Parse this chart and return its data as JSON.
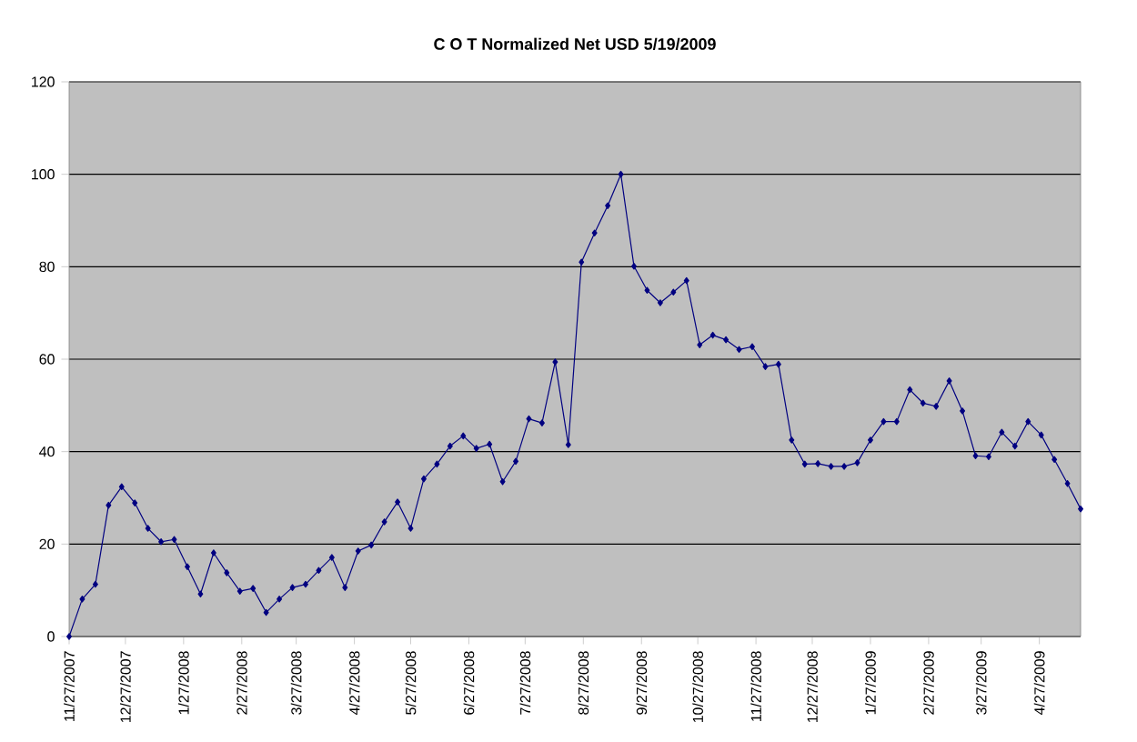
{
  "chart_data": {
    "type": "line",
    "title": "C O T Normalized Net  USD 5/19/2009",
    "x": [
      "2007-11-27",
      "2007-12-04",
      "2007-12-11",
      "2007-12-18",
      "2007-12-25",
      "2008-01-01",
      "2008-01-08",
      "2008-01-15",
      "2008-01-22",
      "2008-01-29",
      "2008-02-05",
      "2008-02-12",
      "2008-02-19",
      "2008-02-26",
      "2008-03-04",
      "2008-03-11",
      "2008-03-18",
      "2008-03-25",
      "2008-04-01",
      "2008-04-08",
      "2008-04-15",
      "2008-04-22",
      "2008-04-29",
      "2008-05-06",
      "2008-05-13",
      "2008-05-20",
      "2008-05-27",
      "2008-06-03",
      "2008-06-10",
      "2008-06-17",
      "2008-06-24",
      "2008-07-01",
      "2008-07-08",
      "2008-07-15",
      "2008-07-22",
      "2008-07-29",
      "2008-08-05",
      "2008-08-12",
      "2008-08-19",
      "2008-08-26",
      "2008-09-02",
      "2008-09-09",
      "2008-09-16",
      "2008-09-23",
      "2008-09-30",
      "2008-10-07",
      "2008-10-14",
      "2008-10-21",
      "2008-10-28",
      "2008-11-04",
      "2008-11-11",
      "2008-11-18",
      "2008-11-25",
      "2008-12-02",
      "2008-12-09",
      "2008-12-16",
      "2008-12-23",
      "2008-12-30",
      "2009-01-06",
      "2009-01-13",
      "2009-01-20",
      "2009-01-27",
      "2009-02-03",
      "2009-02-10",
      "2009-02-17",
      "2009-02-24",
      "2009-03-03",
      "2009-03-10",
      "2009-03-17",
      "2009-03-24",
      "2009-03-31",
      "2009-04-07",
      "2009-04-14",
      "2009-04-21",
      "2009-04-28",
      "2009-05-05",
      "2009-05-12",
      "2009-05-19"
    ],
    "values": [
      0,
      8.1,
      11.3,
      28.4,
      32.4,
      28.9,
      23.4,
      20.5,
      21.0,
      15.1,
      9.2,
      18.1,
      13.8,
      9.8,
      10.4,
      5.2,
      8.1,
      10.6,
      11.3,
      14.3,
      17.1,
      10.6,
      18.5,
      19.8,
      24.8,
      29.1,
      23.4,
      34.1,
      37.3,
      41.2,
      43.4,
      40.7,
      41.6,
      33.5,
      37.9,
      47.1,
      46.2,
      59.4,
      41.5,
      81.0,
      87.3,
      93.2,
      100,
      80.1,
      74.9,
      72.2,
      74.5,
      77.0,
      63.1,
      65.2,
      64.2,
      62.1,
      62.7,
      58.4,
      58.9,
      42.5,
      37.3,
      37.4,
      36.8,
      36.8,
      37.6,
      42.5,
      46.5,
      46.5,
      53.4,
      50.5,
      49.8,
      55.3,
      48.8,
      39.1,
      38.9,
      44.2,
      41.2,
      46.5,
      43.6,
      38.3,
      33.1,
      27.6
    ],
    "color": "#000080",
    "marker": "diamond",
    "line_style": "solid",
    "grid": "y",
    "xlim": [
      "2007-11-27",
      "2009-05-19"
    ],
    "xticks": [
      {
        "value": "2007-11-27",
        "label": "11/27/2007"
      },
      {
        "value": "2007-12-27",
        "label": "12/27/2007"
      },
      {
        "value": "2008-01-27",
        "label": "1/27/2008"
      },
      {
        "value": "2008-02-27",
        "label": "2/27/2008"
      },
      {
        "value": "2008-03-27",
        "label": "3/27/2008"
      },
      {
        "value": "2008-04-27",
        "label": "4/27/2008"
      },
      {
        "value": "2008-05-27",
        "label": "5/27/2008"
      },
      {
        "value": "2008-06-27",
        "label": "6/27/2008"
      },
      {
        "value": "2008-07-27",
        "label": "7/27/2008"
      },
      {
        "value": "2008-08-27",
        "label": "8/27/2008"
      },
      {
        "value": "2008-09-27",
        "label": "9/27/2008"
      },
      {
        "value": "2008-10-27",
        "label": "10/27/2008"
      },
      {
        "value": "2008-11-27",
        "label": "11/27/2008"
      },
      {
        "value": "2008-12-27",
        "label": "12/27/2008"
      },
      {
        "value": "2009-01-27",
        "label": "1/27/2009"
      },
      {
        "value": "2009-02-27",
        "label": "2/27/2009"
      },
      {
        "value": "2009-03-27",
        "label": "3/27/2009"
      },
      {
        "value": "2009-04-27",
        "label": "4/27/2009"
      }
    ],
    "ylim": [
      0,
      120
    ],
    "yticks": [
      0,
      20,
      40,
      60,
      80,
      100,
      120
    ]
  }
}
